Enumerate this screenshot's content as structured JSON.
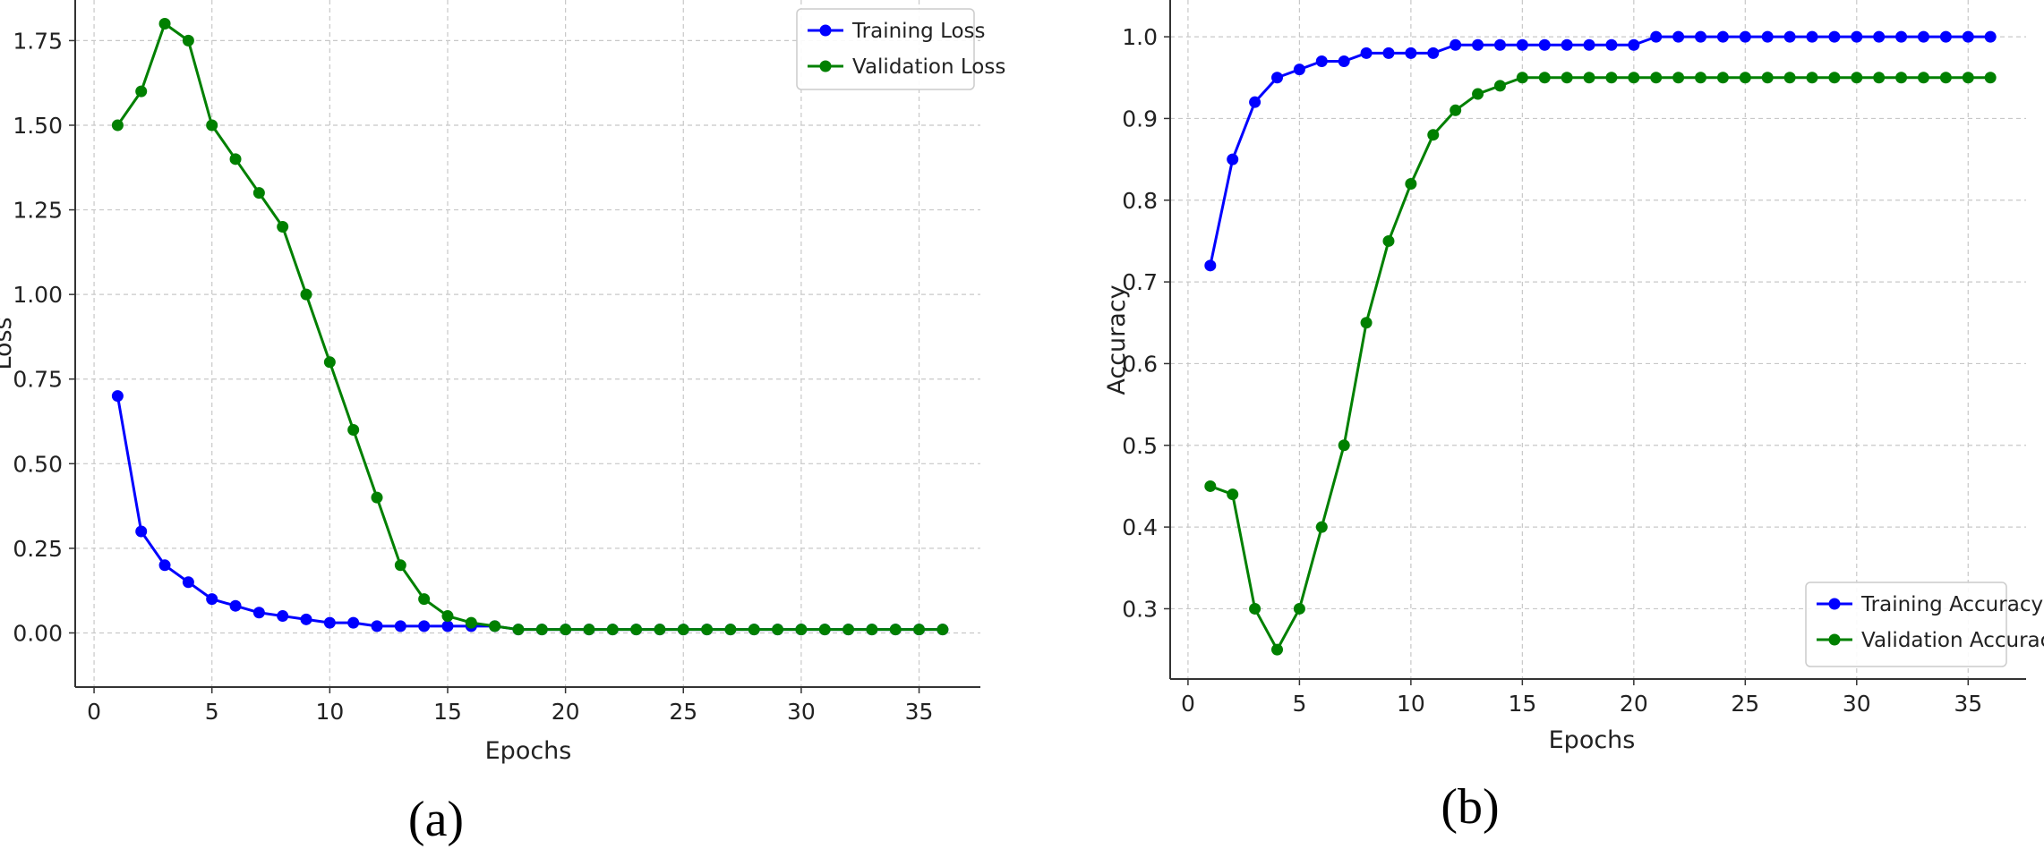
{
  "chart_data": [
    {
      "type": "line",
      "panel_label": "(a)",
      "xlabel": "Epochs",
      "ylabel": "Loss",
      "xlim": [
        -0.8,
        37.6
      ],
      "ylim": [
        -0.16,
        1.87
      ],
      "xticks": [
        0,
        5,
        10,
        15,
        20,
        25,
        30,
        35
      ],
      "yticks": [
        "0.00",
        "0.25",
        "0.50",
        "0.75",
        "1.00",
        "1.25",
        "1.50",
        "1.75"
      ],
      "grid": true,
      "legend_position": "top-right",
      "x": [
        1,
        2,
        3,
        4,
        5,
        6,
        7,
        8,
        9,
        10,
        11,
        12,
        13,
        14,
        15,
        16,
        17,
        18,
        19,
        20,
        21,
        22,
        23,
        24,
        25,
        26,
        27,
        28,
        29,
        30,
        31,
        32,
        33,
        34,
        35,
        36
      ],
      "series": [
        {
          "name": "Training Loss",
          "color": "#0000ff",
          "values": [
            0.7,
            0.3,
            0.2,
            0.15,
            0.1,
            0.08,
            0.06,
            0.05,
            0.04,
            0.03,
            0.03,
            0.02,
            0.02,
            0.02,
            0.02,
            0.02,
            0.02,
            0.01,
            0.01,
            0.01,
            0.01,
            0.01,
            0.01,
            0.01,
            0.01,
            0.01,
            0.01,
            0.01,
            0.01,
            0.01,
            0.01,
            0.01,
            0.01,
            0.01,
            0.01,
            0.01
          ]
        },
        {
          "name": "Validation Loss",
          "color": "#008000",
          "values": [
            1.5,
            1.6,
            1.8,
            1.75,
            1.5,
            1.4,
            1.3,
            1.2,
            1.0,
            0.8,
            0.6,
            0.4,
            0.2,
            0.1,
            0.05,
            0.03,
            0.02,
            0.01,
            0.01,
            0.01,
            0.01,
            0.01,
            0.01,
            0.01,
            0.01,
            0.01,
            0.01,
            0.01,
            0.01,
            0.01,
            0.01,
            0.01,
            0.01,
            0.01,
            0.01,
            0.01
          ]
        }
      ]
    },
    {
      "type": "line",
      "panel_label": "(b)",
      "xlabel": "Epochs",
      "ylabel": "Accuracy",
      "xlim": [
        -0.8,
        37.6
      ],
      "ylim": [
        0.214,
        1.045
      ],
      "xticks": [
        0,
        5,
        10,
        15,
        20,
        25,
        30,
        35
      ],
      "yticks": [
        "0.3",
        "0.4",
        "0.5",
        "0.6",
        "0.7",
        "0.8",
        "0.9",
        "1.0"
      ],
      "grid": true,
      "legend_position": "bottom-right",
      "x": [
        1,
        2,
        3,
        4,
        5,
        6,
        7,
        8,
        9,
        10,
        11,
        12,
        13,
        14,
        15,
        16,
        17,
        18,
        19,
        20,
        21,
        22,
        23,
        24,
        25,
        26,
        27,
        28,
        29,
        30,
        31,
        32,
        33,
        34,
        35,
        36
      ],
      "series": [
        {
          "name": "Training Accuracy",
          "color": "#0000ff",
          "values": [
            0.72,
            0.85,
            0.92,
            0.95,
            0.96,
            0.97,
            0.97,
            0.98,
            0.98,
            0.98,
            0.98,
            0.99,
            0.99,
            0.99,
            0.99,
            0.99,
            0.99,
            0.99,
            0.99,
            0.99,
            1.0,
            1.0,
            1.0,
            1.0,
            1.0,
            1.0,
            1.0,
            1.0,
            1.0,
            1.0,
            1.0,
            1.0,
            1.0,
            1.0,
            1.0,
            1.0
          ]
        },
        {
          "name": "Validation Accuracy",
          "color": "#008000",
          "values": [
            0.45,
            0.44,
            0.3,
            0.25,
            0.3,
            0.4,
            0.5,
            0.65,
            0.75,
            0.82,
            0.88,
            0.91,
            0.93,
            0.94,
            0.95,
            0.95,
            0.95,
            0.95,
            0.95,
            0.95,
            0.95,
            0.95,
            0.95,
            0.95,
            0.95,
            0.95,
            0.95,
            0.95,
            0.95,
            0.95,
            0.95,
            0.95,
            0.95,
            0.95,
            0.95,
            0.95
          ]
        }
      ]
    }
  ]
}
